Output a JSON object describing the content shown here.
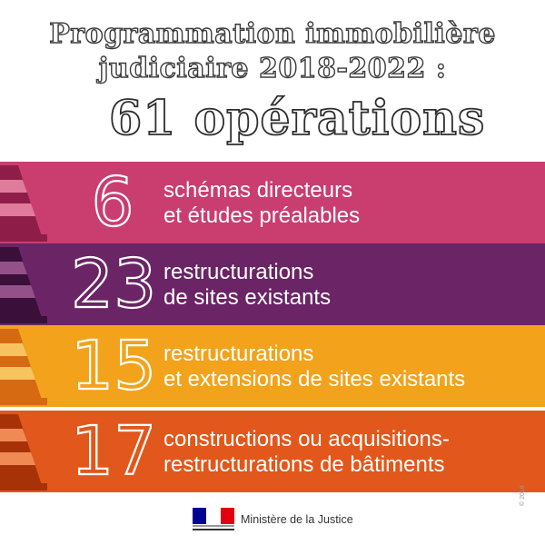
{
  "header": {
    "title_line1": "Programmation immobilière",
    "title_line2": "judiciaire 2018-2022 :",
    "big_title": "61 opérations"
  },
  "bands": [
    {
      "number": "6",
      "line1": "schémas directeurs",
      "line2": "et études préalables",
      "color": "#c93e6f",
      "cone_dark": "#8e1e48",
      "cone_light": "#e07b9c"
    },
    {
      "number": "23",
      "line1": "restructurations",
      "line2": "de sites existants",
      "color": "#6b2465",
      "cone_dark": "#3a0f39",
      "cone_light": "#945089"
    },
    {
      "number": "15",
      "line1": "restructurations",
      "line2": "et extensions de sites existants",
      "color": "#f2a31b",
      "cone_dark": "#d66a12",
      "cone_light": "#f7c35e"
    },
    {
      "number": "17",
      "line1": "constructions ou acquisitions-",
      "line2": "restructurations de bâtiments",
      "color": "#e2571b",
      "cone_dark": "#a83208",
      "cone_light": "#f08a55"
    }
  ],
  "footer": {
    "ministry": "Ministère de la Justice",
    "flag_colors": [
      "#000091",
      "#ffffff",
      "#e1000f"
    ],
    "ref": "© 2018"
  }
}
